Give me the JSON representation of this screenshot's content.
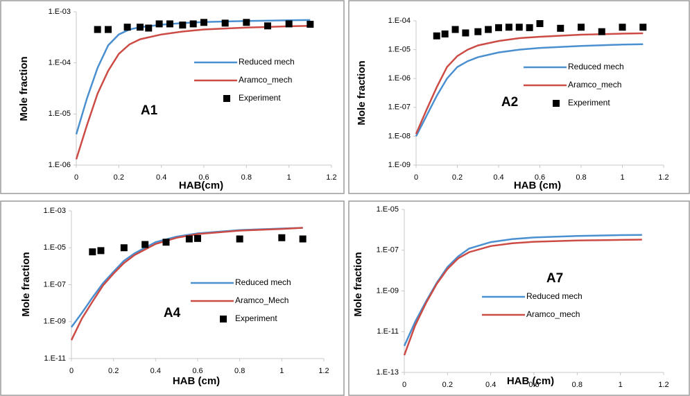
{
  "chart_data": [
    {
      "type": "line",
      "annotation": "A1",
      "x_label": "HAB(cm)",
      "y_label": "Mole fraction",
      "ylog": true,
      "xlim": [
        0,
        1.2
      ],
      "xticks": [
        0,
        0.2,
        0.4,
        0.6,
        0.8,
        1,
        1.2
      ],
      "ylim": [
        1e-06,
        0.001
      ],
      "yticks": [
        {
          "value": 1e-06,
          "label": "1.E-06"
        },
        {
          "value": 1e-05,
          "label": "1.E-05"
        },
        {
          "value": 0.0001,
          "label": "1.E-04"
        },
        {
          "value": 0.001,
          "label": "1.E-03"
        }
      ],
      "series": [
        {
          "name": "Reduced mech",
          "color": "#4a8fd0",
          "marker": "line",
          "x": [
            0,
            0.05,
            0.1,
            0.15,
            0.2,
            0.25,
            0.3,
            0.4,
            0.5,
            0.6,
            0.8,
            1.0,
            1.1
          ],
          "values": [
            4e-06,
            2e-05,
            8e-05,
            0.00022,
            0.00036,
            0.00045,
            0.0005,
            0.00056,
            0.0006,
            0.00063,
            0.00066,
            0.00068,
            0.00069
          ]
        },
        {
          "name": "Aramco_mech",
          "color": "#cc4b45",
          "marker": "line",
          "x": [
            0,
            0.05,
            0.1,
            0.15,
            0.2,
            0.25,
            0.3,
            0.4,
            0.5,
            0.6,
            0.8,
            1.0,
            1.1
          ],
          "values": [
            1.3e-06,
            6e-06,
            2.5e-05,
            7e-05,
            0.00015,
            0.00023,
            0.00029,
            0.00036,
            0.00041,
            0.00045,
            0.00049,
            0.00052,
            0.00053
          ]
        },
        {
          "name": "Experiment",
          "color": "#000000",
          "marker": "square",
          "x": [
            0.1,
            0.15,
            0.24,
            0.3,
            0.34,
            0.39,
            0.44,
            0.5,
            0.55,
            0.6,
            0.7,
            0.8,
            0.9,
            1.0,
            1.1
          ],
          "values": [
            0.00045,
            0.00045,
            0.0005,
            0.0005,
            0.00048,
            0.00058,
            0.00058,
            0.00055,
            0.00058,
            0.00062,
            0.0006,
            0.00062,
            0.00053,
            0.00058,
            0.00057
          ]
        }
      ]
    },
    {
      "type": "line",
      "annotation": "A2",
      "x_label": "HAB (cm)",
      "y_label": "Mole fraction",
      "ylog": true,
      "xlim": [
        0,
        1.2
      ],
      "xticks": [
        0,
        0.2,
        0.4,
        0.6,
        0.8,
        1,
        1.2
      ],
      "ylim": [
        1e-09,
        0.0001
      ],
      "yticks": [
        {
          "value": 1e-09,
          "label": "1.E-09"
        },
        {
          "value": 1e-08,
          "label": "1.E-08"
        },
        {
          "value": 1e-07,
          "label": "1.E-07"
        },
        {
          "value": 1e-06,
          "label": "1.E-06"
        },
        {
          "value": 1e-05,
          "label": "1.E-05"
        },
        {
          "value": 0.0001,
          "label": "1.E-04"
        }
      ],
      "series": [
        {
          "name": "Reduced mech",
          "color": "#4a8fd0",
          "marker": "line",
          "x": [
            0,
            0.05,
            0.1,
            0.15,
            0.2,
            0.25,
            0.3,
            0.4,
            0.5,
            0.6,
            0.8,
            1.0,
            1.1
          ],
          "values": [
            1e-08,
            5e-08,
            2.5e-07,
            1e-06,
            2.5e-06,
            4e-06,
            5.5e-06,
            8e-06,
            1e-05,
            1.15e-05,
            1.35e-05,
            1.5e-05,
            1.55e-05
          ]
        },
        {
          "name": "Aramco_mech",
          "color": "#cc4b45",
          "marker": "line",
          "x": [
            0,
            0.05,
            0.1,
            0.15,
            0.2,
            0.25,
            0.3,
            0.4,
            0.5,
            0.6,
            0.8,
            1.0,
            1.1
          ],
          "values": [
            1.2e-08,
            8e-08,
            5e-07,
            2.5e-06,
            6e-06,
            1e-05,
            1.4e-05,
            2e-05,
            2.5e-05,
            2.8e-05,
            3.3e-05,
            3.6e-05,
            3.7e-05
          ]
        },
        {
          "name": "Experiment",
          "color": "#000000",
          "marker": "square",
          "x": [
            0.1,
            0.14,
            0.19,
            0.24,
            0.3,
            0.35,
            0.4,
            0.45,
            0.5,
            0.55,
            0.6,
            0.7,
            0.8,
            0.9,
            1.0,
            1.1
          ],
          "values": [
            3e-05,
            3.5e-05,
            5e-05,
            3.8e-05,
            4.2e-05,
            5e-05,
            5.8e-05,
            6e-05,
            6e-05,
            5.8e-05,
            8e-05,
            5.5e-05,
            6e-05,
            4.2e-05,
            6e-05,
            6e-05
          ]
        }
      ]
    },
    {
      "type": "line",
      "annotation": "A4",
      "x_label": "HAB (cm)",
      "y_label": "Mole fraction",
      "ylog": true,
      "xlim": [
        0,
        1.2
      ],
      "xticks": [
        0,
        0.2,
        0.4,
        0.6,
        0.8,
        1,
        1.2
      ],
      "ylim": [
        1e-11,
        0.001
      ],
      "yticks": [
        {
          "value": 1e-11,
          "label": "1.E-11"
        },
        {
          "value": 1e-09,
          "label": "1.E-09"
        },
        {
          "value": 1e-07,
          "label": "1.E-07"
        },
        {
          "value": 1e-05,
          "label": "1.E-05"
        },
        {
          "value": 0.001,
          "label": "1.E-03"
        }
      ],
      "series": [
        {
          "name": "Reduced mech",
          "color": "#4a8fd0",
          "marker": "line",
          "x": [
            0,
            0.05,
            0.1,
            0.15,
            0.2,
            0.25,
            0.3,
            0.4,
            0.5,
            0.6,
            0.8,
            1.0,
            1.1
          ],
          "values": [
            5e-10,
            3e-09,
            2e-08,
            1.2e-07,
            5e-07,
            2e-06,
            5e-06,
            2e-05,
            4e-05,
            6e-05,
            9e-05,
            0.00011,
            0.00012
          ]
        },
        {
          "name": "Aramco_Mech",
          "color": "#cc4b45",
          "marker": "line",
          "x": [
            0,
            0.05,
            0.1,
            0.15,
            0.2,
            0.25,
            0.3,
            0.4,
            0.5,
            0.6,
            0.8,
            1.0,
            1.1
          ],
          "values": [
            1e-10,
            1.5e-09,
            1.2e-08,
            9e-08,
            4e-07,
            1.5e-06,
            4e-06,
            1.6e-05,
            3.5e-05,
            5.5e-05,
            8.5e-05,
            0.000105,
            0.00012
          ]
        },
        {
          "name": "Experiment",
          "color": "#000000",
          "marker": "square",
          "x": [
            0.1,
            0.14,
            0.25,
            0.35,
            0.45,
            0.56,
            0.6,
            0.8,
            1.0,
            1.1
          ],
          "values": [
            6e-06,
            7e-06,
            1e-05,
            1.5e-05,
            2e-05,
            3e-05,
            3.2e-05,
            3e-05,
            3.5e-05,
            3e-05
          ]
        }
      ]
    },
    {
      "type": "line",
      "annotation": "A7",
      "x_label": "HAB (cm)",
      "y_label": "Mole fraction",
      "ylog": true,
      "xlim": [
        0,
        1.2
      ],
      "xticks": [
        0,
        0.2,
        0.4,
        0.6,
        0.8,
        1,
        1.2
      ],
      "ylim": [
        1e-13,
        1e-05
      ],
      "yticks": [
        {
          "value": 1e-13,
          "label": "1.E-13"
        },
        {
          "value": 1e-11,
          "label": "1.E-11"
        },
        {
          "value": 1e-09,
          "label": "1.E-09"
        },
        {
          "value": 1e-07,
          "label": "1.E-07"
        },
        {
          "value": 1e-05,
          "label": "1.E-05"
        }
      ],
      "series": [
        {
          "name": "Reduced mech",
          "color": "#4a8fd0",
          "marker": "line",
          "x": [
            0,
            0.05,
            0.1,
            0.15,
            0.2,
            0.25,
            0.3,
            0.4,
            0.5,
            0.6,
            0.8,
            1.0,
            1.1
          ],
          "values": [
            2e-12,
            3e-11,
            3e-10,
            2.5e-09,
            1.5e-08,
            5e-08,
            1.2e-07,
            2.5e-07,
            3.5e-07,
            4.2e-07,
            5e-07,
            5.5e-07,
            5.6e-07
          ]
        },
        {
          "name": "Aramco_mech",
          "color": "#cc4b45",
          "marker": "line",
          "x": [
            0,
            0.05,
            0.1,
            0.15,
            0.2,
            0.25,
            0.3,
            0.4,
            0.5,
            0.6,
            0.8,
            1.0,
            1.1
          ],
          "values": [
            7e-13,
            2e-11,
            2.5e-10,
            2.2e-09,
            1.2e-08,
            4e-08,
            8e-08,
            1.6e-07,
            2.2e-07,
            2.6e-07,
            3e-07,
            3.2e-07,
            3.3e-07
          ]
        }
      ]
    }
  ]
}
